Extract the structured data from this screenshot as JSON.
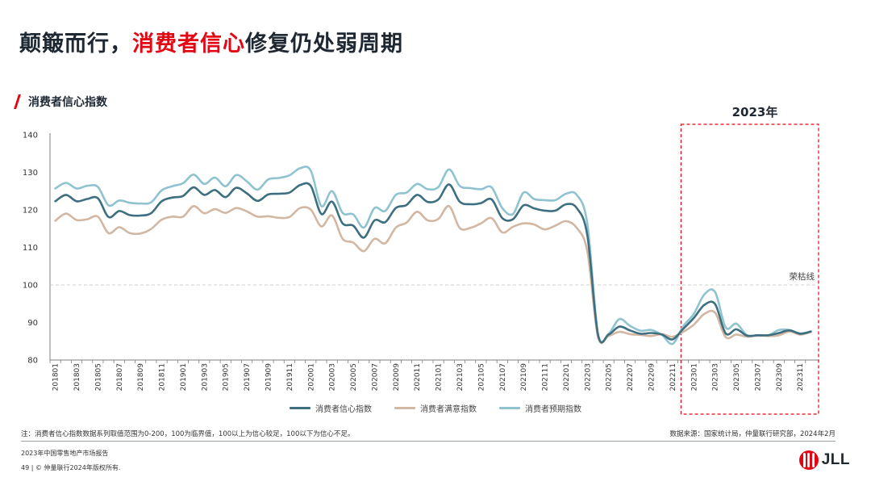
{
  "page": {
    "title_prefix": "颠簸而行，",
    "title_accent": "消费者信心",
    "title_suffix": "修复仍处弱周期",
    "subtitle": "消费者信心指数",
    "note": "注：消费者信心指数数据系列取值范围为0-200，100为临界值，100以上为信心较足，100以下为信心不足。",
    "source": "数据来源：国家统计局，仲量联行研究部，2024年2月",
    "report": "2023年中国零售地产市场报告",
    "copyright": "49 | © 仲量联行2024年版权所有.",
    "logo_text": "JLL",
    "logo_icon": "jll-logo-icon"
  },
  "chart_data": {
    "type": "line",
    "ylim": [
      80,
      140
    ],
    "yticks": [
      80,
      90,
      100,
      110,
      120,
      130,
      140
    ],
    "grid": false,
    "legend": "bottom",
    "reference_line": {
      "value": 100,
      "label": "荣枯线"
    },
    "highlight": {
      "label": "2023年",
      "from": "202301",
      "to": "202312"
    },
    "x": [
      "201801",
      "201802",
      "201803",
      "201804",
      "201805",
      "201806",
      "201807",
      "201808",
      "201809",
      "201810",
      "201811",
      "201812",
      "201901",
      "201902",
      "201903",
      "201904",
      "201905",
      "201906",
      "201907",
      "201908",
      "201909",
      "201910",
      "201911",
      "201912",
      "202001",
      "202002",
      "202003",
      "202004",
      "202005",
      "202006",
      "202007",
      "202008",
      "202009",
      "202010",
      "202011",
      "202012",
      "202101",
      "202102",
      "202103",
      "202104",
      "202105",
      "202106",
      "202107",
      "202108",
      "202109",
      "202110",
      "202111",
      "202112",
      "202201",
      "202202",
      "202203",
      "202204",
      "202205",
      "202206",
      "202207",
      "202208",
      "202209",
      "202210",
      "202211",
      "202212",
      "202301",
      "202302",
      "202303",
      "202304",
      "202305",
      "202306",
      "202307",
      "202308",
      "202309",
      "202310",
      "202311",
      "202312"
    ],
    "xtick_labels": [
      "201801",
      "201803",
      "201805",
      "201807",
      "201809",
      "201811",
      "201901",
      "201903",
      "201905",
      "201907",
      "201909",
      "201911",
      "202001",
      "202003",
      "202005",
      "202007",
      "202009",
      "202011",
      "202101",
      "202103",
      "202105",
      "202107",
      "202109",
      "202111",
      "202201",
      "202203",
      "202205",
      "202207",
      "202209",
      "202211",
      "202301",
      "202303",
      "202305",
      "202307",
      "202309",
      "202311"
    ],
    "series": [
      {
        "name": "消费者信心指数",
        "color": "#3d6f80",
        "values": [
          122.3,
          124.0,
          122.3,
          122.9,
          123.1,
          118.1,
          119.7,
          118.6,
          118.5,
          119.1,
          122.3,
          123.3,
          123.7,
          126.0,
          124.0,
          125.3,
          123.4,
          125.9,
          124.4,
          122.4,
          124.1,
          124.3,
          124.6,
          126.6,
          126.4,
          118.9,
          122.2,
          116.4,
          115.8,
          112.6,
          117.2,
          116.7,
          120.5,
          121.3,
          124.0,
          122.1,
          122.8,
          126.8,
          122.2,
          121.5,
          121.8,
          122.8,
          117.8,
          117.5,
          121.2,
          120.4,
          119.8,
          119.8,
          121.5,
          120.5,
          113.2,
          86.7,
          86.8,
          88.9,
          87.9,
          87.0,
          87.2,
          86.8,
          85.5,
          88.3,
          91.2,
          94.7,
          94.9,
          87.1,
          88.2,
          86.5,
          86.6,
          86.6,
          87.2,
          87.9,
          87.0,
          87.6
        ]
      },
      {
        "name": "消费者满意指数",
        "color": "#d2b7a3",
        "values": [
          117.1,
          119.0,
          117.3,
          117.5,
          118.2,
          113.8,
          115.4,
          113.8,
          113.7,
          114.9,
          117.4,
          118.2,
          118.2,
          121.0,
          119.1,
          120.2,
          119.2,
          120.5,
          119.6,
          118.2,
          118.3,
          117.9,
          118.1,
          120.5,
          120.1,
          115.6,
          118.5,
          112.3,
          111.3,
          109.0,
          112.3,
          111.1,
          115.3,
          116.6,
          119.5,
          117.2,
          117.6,
          121.0,
          115.2,
          115.2,
          116.4,
          117.8,
          114.0,
          115.5,
          116.4,
          116.1,
          114.8,
          115.8,
          117.0,
          115.2,
          108.9,
          86.2,
          86.4,
          87.5,
          86.9,
          86.7,
          86.4,
          86.9,
          86.2,
          87.5,
          89.4,
          92.3,
          92.6,
          86.1,
          86.8,
          86.2,
          86.5,
          86.4,
          86.6,
          87.6,
          86.8,
          87.5
        ]
      },
      {
        "name": "消费者预期指数",
        "color": "#8ec3cf",
        "values": [
          125.7,
          127.2,
          125.7,
          126.4,
          126.1,
          121.2,
          122.5,
          121.9,
          121.7,
          122.0,
          125.2,
          126.3,
          127.1,
          129.4,
          126.9,
          128.6,
          126.3,
          129.3,
          127.6,
          125.4,
          128.1,
          128.5,
          129.2,
          131.1,
          130.5,
          121.0,
          125.0,
          119.2,
          118.8,
          115.3,
          120.5,
          119.7,
          124.0,
          124.6,
          126.9,
          125.5,
          126.1,
          130.8,
          126.4,
          125.8,
          125.5,
          126.0,
          120.5,
          118.9,
          124.6,
          122.9,
          122.6,
          122.6,
          124.3,
          124.0,
          116.3,
          87.0,
          87.0,
          90.9,
          89.1,
          87.8,
          88.0,
          86.7,
          84.3,
          89.0,
          92.3,
          97.5,
          98.1,
          88.7,
          89.7,
          86.6,
          86.6,
          86.6,
          88.0,
          88.0,
          87.1,
          87.6
        ]
      }
    ]
  }
}
